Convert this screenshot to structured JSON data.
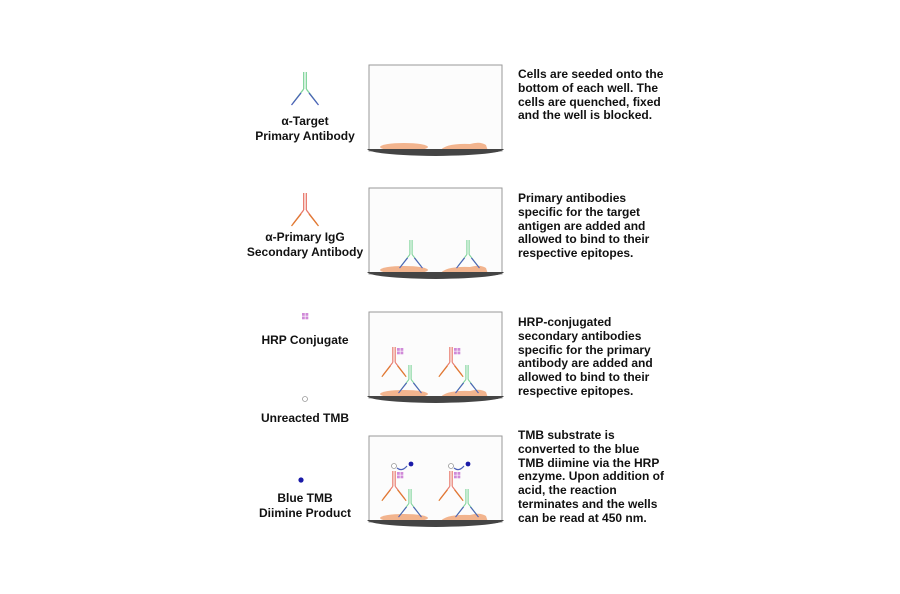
{
  "legend": {
    "primary_antibody": "α-Target\nPrimary Antibody",
    "secondary_antibody": "α-Primary IgG\nSecondary Antibody",
    "hrp": "HRP Conjugate",
    "unreacted_tmb": "Unreacted TMB",
    "blue_tmb": "Blue TMB\nDiimine Product"
  },
  "steps": [
    "Cells are seeded onto the bottom of each well. The cells are quenched, fixed and the well is blocked.",
    "Primary antibodies specific for the target antigen are added and allowed to bind to their respective epitopes.",
    "HRP-conjugated secondary antibodies specific for the primary antibody are added and allowed to bind to their respective epitopes.",
    "TMB substrate is converted to the blue TMB diimine via the HRP enzyme. Upon addition of acid, the reaction terminates and the wells can be read at 450 nm."
  ],
  "colors": {
    "primary_stem": "#7fd49a",
    "primary_arm": "#4a5fb8",
    "secondary_stem": "#e8786a",
    "secondary_arm": "#e07a30",
    "hrp": "#d08ad8",
    "cell": "#f2b48e",
    "blue_tmb": "#1a1aa8",
    "well_base": "#444444"
  }
}
